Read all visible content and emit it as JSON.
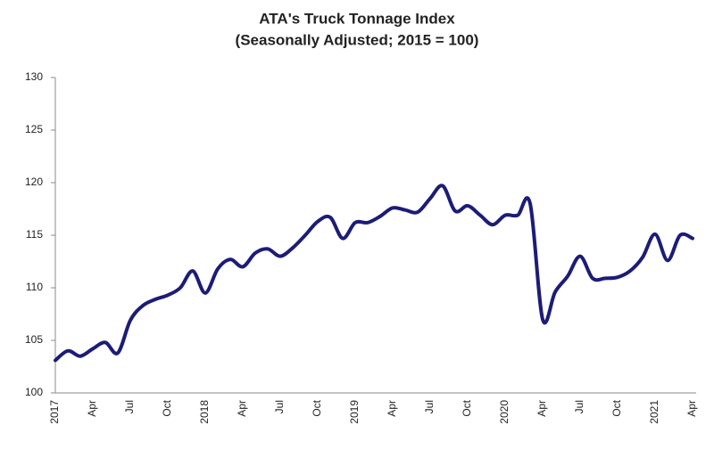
{
  "chart_data": {
    "type": "line",
    "title": "ATA's Truck Tonnage Index",
    "subtitle": "(Seasonally Adjusted; 2015 = 100)",
    "categories": [
      "2017",
      null,
      null,
      "Apr",
      null,
      null,
      "Jul",
      null,
      null,
      "Oct",
      null,
      null,
      "2018",
      null,
      null,
      "Apr",
      null,
      null,
      "Jul",
      null,
      null,
      "Oct",
      null,
      null,
      "2019",
      null,
      null,
      "Apr",
      null,
      null,
      "Jul",
      null,
      null,
      "Oct",
      null,
      null,
      "2020",
      null,
      null,
      "Apr",
      null,
      null,
      "Jul",
      null,
      null,
      "Oct",
      null,
      null,
      "2021",
      null,
      null,
      "Apr"
    ],
    "values": [
      103.1,
      104.0,
      103.5,
      104.2,
      104.8,
      103.8,
      106.9,
      108.3,
      108.9,
      109.3,
      110.0,
      111.6,
      109.5,
      111.8,
      112.7,
      112.0,
      113.3,
      113.7,
      113.0,
      113.8,
      115.0,
      116.3,
      116.7,
      114.7,
      116.2,
      116.2,
      116.8,
      117.6,
      117.4,
      117.2,
      118.5,
      119.7,
      117.3,
      117.8,
      116.9,
      116.0,
      116.9,
      116.9,
      118.0,
      107.0,
      109.6,
      111.1,
      113.0,
      110.9,
      110.9,
      111.0,
      111.6,
      112.9,
      115.1,
      112.6,
      115.0,
      114.7
    ],
    "color": "#1c1c78",
    "ylim": [
      100,
      130
    ],
    "yticks": [
      100,
      105,
      110,
      115,
      120,
      125,
      130
    ],
    "grid": false
  }
}
